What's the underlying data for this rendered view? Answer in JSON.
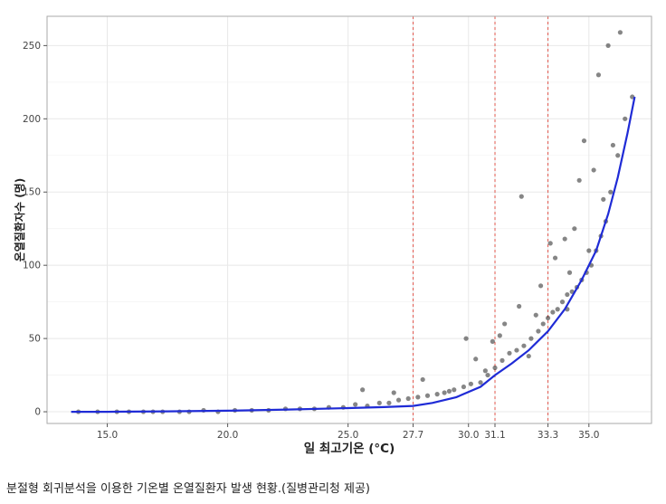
{
  "caption": "분절형 회귀분석을 이용한 기온별 온열질환자 발생 현황.(질병관리청 제공)",
  "chart_data": {
    "type": "scatter",
    "xlabel": "일 최고기온 (°C)",
    "ylabel": "온열질환자수 (명)",
    "xlim": [
      12.5,
      37.6
    ],
    "ylim": [
      -8,
      270
    ],
    "x_ticks": [
      "15.0",
      "20.0",
      "25.0",
      "27.7",
      "30.0",
      "31.1",
      "33.3",
      "35.0"
    ],
    "x_tick_values": [
      15.0,
      20.0,
      25.0,
      27.7,
      30.0,
      31.1,
      33.3,
      35.0
    ],
    "y_ticks": [
      0,
      50,
      100,
      150,
      200,
      250
    ],
    "grid": true,
    "breakpoints": [
      27.7,
      31.1,
      33.3
    ],
    "colors": {
      "points": "#222222",
      "fit_line": "#1f2bd6",
      "breakpoint": "#e0584e",
      "grid": "#e8e8e8",
      "frame": "#aaaaaa"
    },
    "fit_curve": {
      "x": [
        13.5,
        15.0,
        17.5,
        20.0,
        22.5,
        25.0,
        26.5,
        27.7,
        28.5,
        29.5,
        30.5,
        31.1,
        31.8,
        32.5,
        33.3,
        34.0,
        34.7,
        35.3,
        35.8,
        36.2,
        36.6,
        36.9
      ],
      "y": [
        0,
        0,
        0.3,
        0.7,
        1.5,
        2.5,
        3.2,
        4,
        6,
        10,
        17,
        25,
        33,
        42,
        55,
        70,
        90,
        110,
        135,
        160,
        190,
        215
      ]
    },
    "series": [
      {
        "x": [
          13.8,
          14.6,
          15.4,
          15.9,
          16.5,
          16.9,
          17.3,
          18.0,
          18.4,
          19.0,
          19.6,
          20.3,
          21.0,
          21.7,
          22.4,
          23.0,
          23.6,
          24.2,
          24.8,
          25.3,
          25.8,
          26.3,
          26.7,
          27.1,
          27.5,
          27.9,
          28.3,
          28.7,
          29.0,
          29.4,
          29.8,
          30.1,
          30.5,
          30.8,
          31.1,
          31.4,
          31.7,
          32.0,
          32.3,
          32.6,
          32.9,
          33.1,
          33.3,
          33.5,
          33.7,
          33.9,
          34.1,
          34.3,
          34.5,
          34.7,
          34.9,
          35.1,
          35.3,
          35.5,
          35.7,
          35.9,
          36.2,
          36.5,
          36.8,
          25.6,
          26.9,
          28.1,
          29.2,
          30.3,
          31.0,
          31.5,
          32.1,
          32.5,
          33.0,
          33.6,
          34.0,
          34.4,
          34.8,
          35.2,
          35.6,
          36.0,
          29.9,
          30.7,
          31.3,
          32.8,
          33.4,
          34.2,
          34.6,
          35.0,
          35.4,
          35.8,
          34.1,
          32.2,
          36.3
        ],
        "y": [
          0,
          0,
          0,
          0,
          0,
          0,
          0,
          0,
          0,
          1,
          0,
          1,
          1,
          1,
          2,
          2,
          2,
          3,
          3,
          5,
          4,
          6,
          6,
          8,
          9,
          10,
          11,
          12,
          13,
          15,
          17,
          19,
          20,
          25,
          30,
          35,
          40,
          42,
          45,
          50,
          55,
          60,
          64,
          68,
          70,
          75,
          80,
          82,
          85,
          90,
          95,
          100,
          110,
          120,
          130,
          150,
          175,
          200,
          215,
          15,
          13,
          22,
          14,
          36,
          48,
          60,
          72,
          38,
          86,
          105,
          118,
          125,
          185,
          165,
          145,
          182,
          50,
          28,
          52,
          66,
          115,
          95,
          158,
          110,
          230,
          250,
          70,
          147,
          259
        ]
      }
    ]
  }
}
